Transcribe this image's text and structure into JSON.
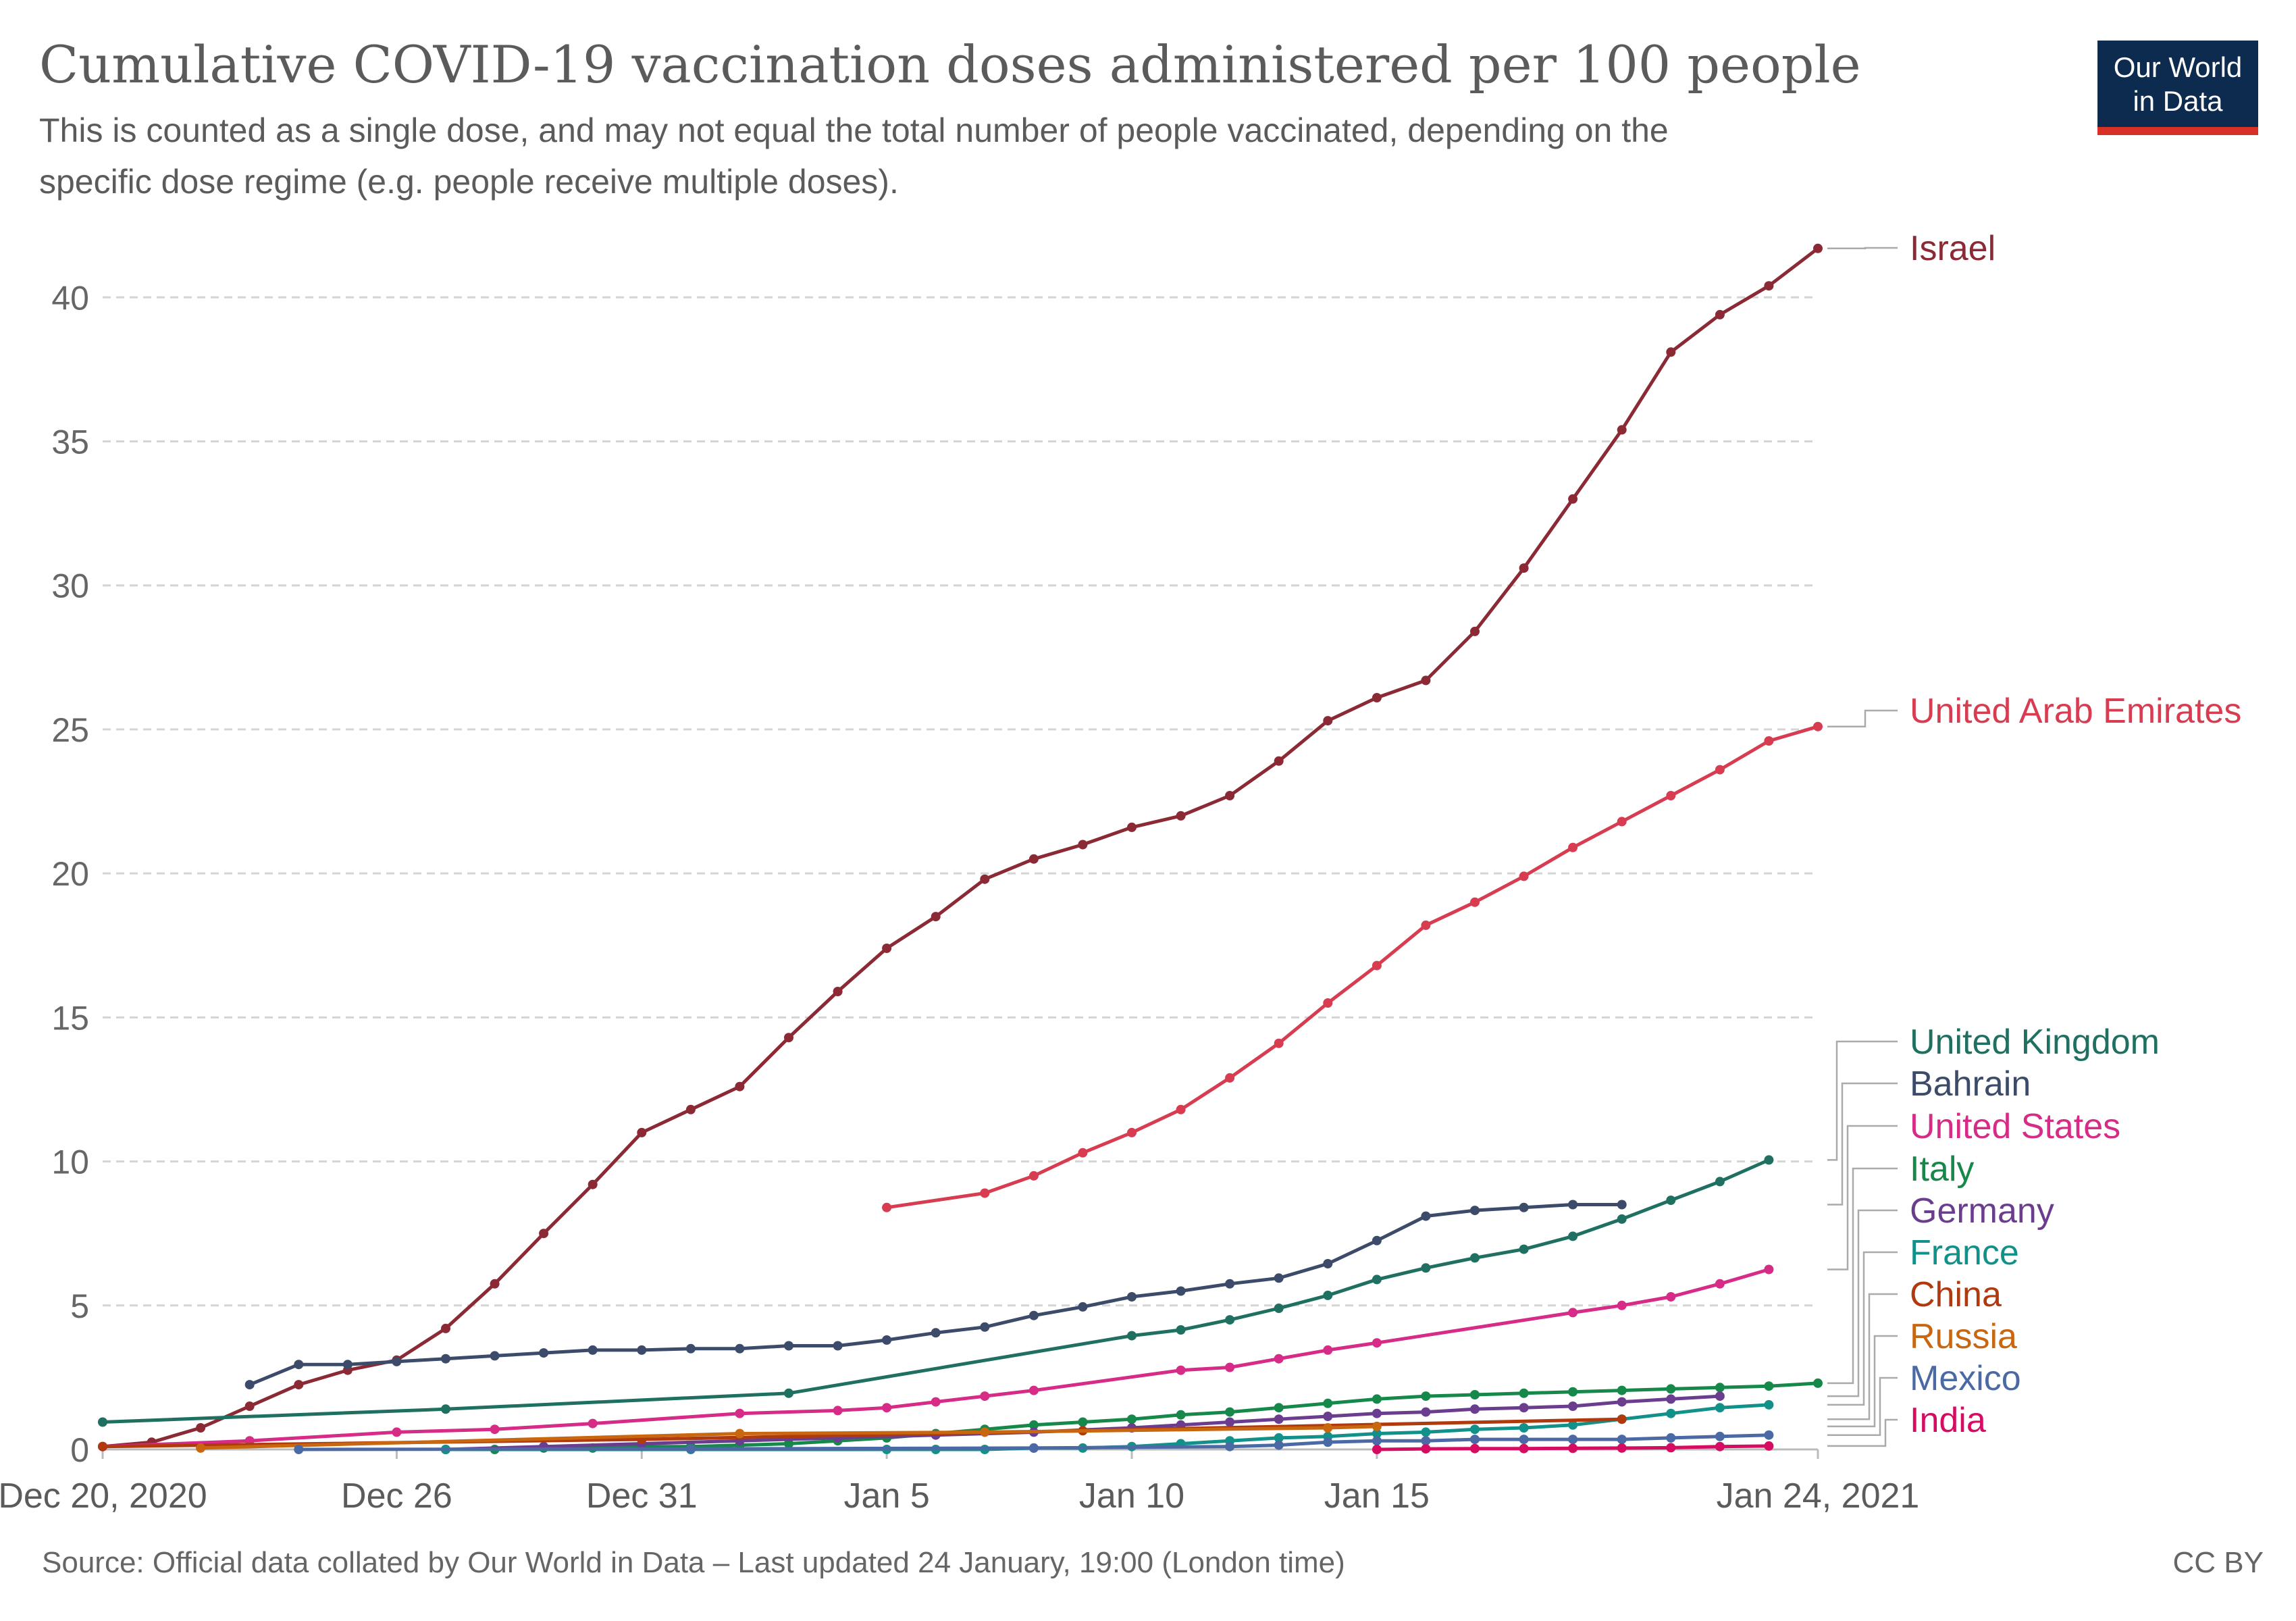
{
  "title": "Cumulative COVID-19 vaccination doses administered per 100 people",
  "subtitle_lines": [
    "This is counted as a single dose, and may not equal the total number of people vaccinated, depending on the",
    "specific dose regime (e.g. people receive multiple doses)."
  ],
  "logo": {
    "line1": "Our World",
    "line2": "in Data",
    "bg": "#0d2a4f",
    "accent": "#d73027"
  },
  "footer": {
    "source": "Source: Official data collated by Our World in Data – Last updated 24 January, 19:00 (London time)",
    "license": "CC BY"
  },
  "chart_data": {
    "type": "line",
    "title": "Cumulative COVID-19 vaccination doses administered per 100 people",
    "ylim": [
      0,
      42
    ],
    "yticks": [
      0,
      5,
      10,
      15,
      20,
      25,
      30,
      35,
      40
    ],
    "xlim": [
      "2020-12-20",
      "2021-01-24"
    ],
    "xticks": [
      {
        "date": "2020-12-20",
        "label": "Dec 20, 2020"
      },
      {
        "date": "2020-12-26",
        "label": "Dec 26"
      },
      {
        "date": "2020-12-31",
        "label": "Dec 31"
      },
      {
        "date": "2021-01-05",
        "label": "Jan 5"
      },
      {
        "date": "2021-01-10",
        "label": "Jan 10"
      },
      {
        "date": "2021-01-15",
        "label": "Jan 15"
      },
      {
        "date": "2021-01-24",
        "label": "Jan 24, 2021"
      }
    ],
    "grid": true,
    "legend_placement": "right",
    "series": [
      {
        "name": "Israel",
        "color": "#8b2a35",
        "points": [
          [
            "2020-12-20",
            0.1
          ],
          [
            "2020-12-21",
            0.25
          ],
          [
            "2020-12-22",
            0.75
          ],
          [
            "2020-12-23",
            1.5
          ],
          [
            "2020-12-24",
            2.25
          ],
          [
            "2020-12-25",
            2.75
          ],
          [
            "2020-12-26",
            3.1
          ],
          [
            "2020-12-27",
            4.2
          ],
          [
            "2020-12-28",
            5.75
          ],
          [
            "2020-12-29",
            7.5
          ],
          [
            "2020-12-30",
            9.2
          ],
          [
            "2020-12-31",
            11.0
          ],
          [
            "2021-01-01",
            11.8
          ],
          [
            "2021-01-02",
            12.6
          ],
          [
            "2021-01-03",
            14.3
          ],
          [
            "2021-01-04",
            15.9
          ],
          [
            "2021-01-05",
            17.4
          ],
          [
            "2021-01-06",
            18.5
          ],
          [
            "2021-01-07",
            19.8
          ],
          [
            "2021-01-08",
            20.5
          ],
          [
            "2021-01-09",
            21.0
          ],
          [
            "2021-01-10",
            21.6
          ],
          [
            "2021-01-11",
            22.0
          ],
          [
            "2021-01-12",
            22.7
          ],
          [
            "2021-01-13",
            23.9
          ],
          [
            "2021-01-14",
            25.3
          ],
          [
            "2021-01-15",
            26.1
          ],
          [
            "2021-01-16",
            26.7
          ],
          [
            "2021-01-17",
            28.4
          ],
          [
            "2021-01-18",
            30.6
          ],
          [
            "2021-01-19",
            33.0
          ],
          [
            "2021-01-20",
            35.4
          ],
          [
            "2021-01-21",
            38.1
          ],
          [
            "2021-01-22",
            39.4
          ],
          [
            "2021-01-23",
            40.4
          ],
          [
            "2021-01-24",
            41.7
          ]
        ]
      },
      {
        "name": "United Arab Emirates",
        "color": "#d73c50",
        "points": [
          [
            "2021-01-05",
            8.4
          ],
          [
            "2021-01-07",
            8.9
          ],
          [
            "2021-01-08",
            9.5
          ],
          [
            "2021-01-09",
            10.3
          ],
          [
            "2021-01-10",
            11.0
          ],
          [
            "2021-01-11",
            11.8
          ],
          [
            "2021-01-12",
            12.9
          ],
          [
            "2021-01-13",
            14.1
          ],
          [
            "2021-01-14",
            15.5
          ],
          [
            "2021-01-15",
            16.8
          ],
          [
            "2021-01-16",
            18.2
          ],
          [
            "2021-01-17",
            19.0
          ],
          [
            "2021-01-18",
            19.9
          ],
          [
            "2021-01-19",
            20.9
          ],
          [
            "2021-01-20",
            21.8
          ],
          [
            "2021-01-21",
            22.7
          ],
          [
            "2021-01-22",
            23.6
          ],
          [
            "2021-01-23",
            24.6
          ],
          [
            "2021-01-24",
            25.1
          ]
        ]
      },
      {
        "name": "United Kingdom",
        "color": "#1f7060",
        "points": [
          [
            "2020-12-20",
            0.95
          ],
          [
            "2020-12-27",
            1.4
          ],
          [
            "2021-01-03",
            1.95
          ],
          [
            "2021-01-10",
            3.95
          ],
          [
            "2021-01-11",
            4.15
          ],
          [
            "2021-01-12",
            4.5
          ],
          [
            "2021-01-13",
            4.9
          ],
          [
            "2021-01-14",
            5.35
          ],
          [
            "2021-01-15",
            5.9
          ],
          [
            "2021-01-16",
            6.3
          ],
          [
            "2021-01-17",
            6.65
          ],
          [
            "2021-01-18",
            6.95
          ],
          [
            "2021-01-19",
            7.4
          ],
          [
            "2021-01-20",
            8.0
          ],
          [
            "2021-01-21",
            8.65
          ],
          [
            "2021-01-22",
            9.3
          ],
          [
            "2021-01-23",
            10.05
          ]
        ]
      },
      {
        "name": "Bahrain",
        "color": "#3c4b69",
        "points": [
          [
            "2020-12-23",
            2.25
          ],
          [
            "2020-12-24",
            2.95
          ],
          [
            "2020-12-25",
            2.95
          ],
          [
            "2020-12-26",
            3.05
          ],
          [
            "2020-12-27",
            3.15
          ],
          [
            "2020-12-28",
            3.25
          ],
          [
            "2020-12-29",
            3.35
          ],
          [
            "2020-12-30",
            3.45
          ],
          [
            "2020-12-31",
            3.45
          ],
          [
            "2021-01-01",
            3.5
          ],
          [
            "2021-01-02",
            3.5
          ],
          [
            "2021-01-03",
            3.6
          ],
          [
            "2021-01-04",
            3.6
          ],
          [
            "2021-01-05",
            3.8
          ],
          [
            "2021-01-06",
            4.05
          ],
          [
            "2021-01-07",
            4.25
          ],
          [
            "2021-01-08",
            4.65
          ],
          [
            "2021-01-09",
            4.95
          ],
          [
            "2021-01-10",
            5.3
          ],
          [
            "2021-01-11",
            5.5
          ],
          [
            "2021-01-12",
            5.75
          ],
          [
            "2021-01-13",
            5.95
          ],
          [
            "2021-01-14",
            6.45
          ],
          [
            "2021-01-15",
            7.25
          ],
          [
            "2021-01-16",
            8.1
          ],
          [
            "2021-01-17",
            8.3
          ],
          [
            "2021-01-18",
            8.4
          ],
          [
            "2021-01-19",
            8.5
          ],
          [
            "2021-01-20",
            8.5
          ]
        ]
      },
      {
        "name": "United States",
        "color": "#d62b86",
        "points": [
          [
            "2020-12-20",
            0.1
          ],
          [
            "2020-12-23",
            0.3
          ],
          [
            "2020-12-26",
            0.6
          ],
          [
            "2020-12-28",
            0.7
          ],
          [
            "2020-12-30",
            0.9
          ],
          [
            "2021-01-02",
            1.25
          ],
          [
            "2021-01-04",
            1.35
          ],
          [
            "2021-01-05",
            1.45
          ],
          [
            "2021-01-06",
            1.65
          ],
          [
            "2021-01-07",
            1.85
          ],
          [
            "2021-01-08",
            2.05
          ],
          [
            "2021-01-11",
            2.75
          ],
          [
            "2021-01-12",
            2.85
          ],
          [
            "2021-01-13",
            3.15
          ],
          [
            "2021-01-14",
            3.45
          ],
          [
            "2021-01-15",
            3.7
          ],
          [
            "2021-01-19",
            4.75
          ],
          [
            "2021-01-20",
            5.0
          ],
          [
            "2021-01-21",
            5.3
          ],
          [
            "2021-01-22",
            5.75
          ],
          [
            "2021-01-23",
            6.25
          ]
        ]
      },
      {
        "name": "Italy",
        "color": "#16884a",
        "points": [
          [
            "2020-12-27",
            0.0
          ],
          [
            "2020-12-28",
            0.0
          ],
          [
            "2020-12-29",
            0.05
          ],
          [
            "2020-12-30",
            0.05
          ],
          [
            "2020-12-31",
            0.1
          ],
          [
            "2021-01-01",
            0.1
          ],
          [
            "2021-01-02",
            0.15
          ],
          [
            "2021-01-03",
            0.2
          ],
          [
            "2021-01-04",
            0.3
          ],
          [
            "2021-01-05",
            0.4
          ],
          [
            "2021-01-06",
            0.55
          ],
          [
            "2021-01-07",
            0.7
          ],
          [
            "2021-01-08",
            0.85
          ],
          [
            "2021-01-09",
            0.95
          ],
          [
            "2021-01-10",
            1.05
          ],
          [
            "2021-01-11",
            1.2
          ],
          [
            "2021-01-12",
            1.3
          ],
          [
            "2021-01-13",
            1.45
          ],
          [
            "2021-01-14",
            1.6
          ],
          [
            "2021-01-15",
            1.75
          ],
          [
            "2021-01-16",
            1.85
          ],
          [
            "2021-01-17",
            1.9
          ],
          [
            "2021-01-18",
            1.95
          ],
          [
            "2021-01-19",
            2.0
          ],
          [
            "2021-01-20",
            2.05
          ],
          [
            "2021-01-21",
            2.1
          ],
          [
            "2021-01-22",
            2.15
          ],
          [
            "2021-01-23",
            2.2
          ],
          [
            "2021-01-24",
            2.3
          ]
        ]
      },
      {
        "name": "Germany",
        "color": "#6b3d8f",
        "points": [
          [
            "2020-12-27",
            0.0
          ],
          [
            "2020-12-29",
            0.1
          ],
          [
            "2020-12-31",
            0.2
          ],
          [
            "2021-01-02",
            0.3
          ],
          [
            "2021-01-04",
            0.4
          ],
          [
            "2021-01-06",
            0.5
          ],
          [
            "2021-01-08",
            0.6
          ],
          [
            "2021-01-10",
            0.75
          ],
          [
            "2021-01-11",
            0.85
          ],
          [
            "2021-01-12",
            0.95
          ],
          [
            "2021-01-13",
            1.05
          ],
          [
            "2021-01-14",
            1.15
          ],
          [
            "2021-01-15",
            1.25
          ],
          [
            "2021-01-16",
            1.3
          ],
          [
            "2021-01-17",
            1.4
          ],
          [
            "2021-01-18",
            1.45
          ],
          [
            "2021-01-19",
            1.5
          ],
          [
            "2021-01-20",
            1.65
          ],
          [
            "2021-01-21",
            1.75
          ],
          [
            "2021-01-22",
            1.85
          ]
        ]
      },
      {
        "name": "France",
        "color": "#12908a",
        "points": [
          [
            "2020-12-27",
            0.0
          ],
          [
            "2021-01-01",
            0.0
          ],
          [
            "2021-01-05",
            0.0
          ],
          [
            "2021-01-06",
            0.0
          ],
          [
            "2021-01-07",
            0.0
          ],
          [
            "2021-01-08",
            0.05
          ],
          [
            "2021-01-09",
            0.05
          ],
          [
            "2021-01-10",
            0.1
          ],
          [
            "2021-01-11",
            0.2
          ],
          [
            "2021-01-12",
            0.3
          ],
          [
            "2021-01-13",
            0.4
          ],
          [
            "2021-01-14",
            0.45
          ],
          [
            "2021-01-15",
            0.55
          ],
          [
            "2021-01-16",
            0.6
          ],
          [
            "2021-01-17",
            0.7
          ],
          [
            "2021-01-18",
            0.75
          ],
          [
            "2021-01-19",
            0.85
          ],
          [
            "2021-01-20",
            1.05
          ],
          [
            "2021-01-21",
            1.25
          ],
          [
            "2021-01-22",
            1.45
          ],
          [
            "2021-01-23",
            1.55
          ]
        ]
      },
      {
        "name": "China",
        "color": "#b03a0e",
        "points": [
          [
            "2020-12-20",
            0.1
          ],
          [
            "2020-12-31",
            0.35
          ],
          [
            "2021-01-09",
            0.65
          ],
          [
            "2021-01-20",
            1.05
          ]
        ]
      },
      {
        "name": "Russia",
        "color": "#c8670f",
        "points": [
          [
            "2020-12-22",
            0.05
          ],
          [
            "2021-01-02",
            0.55
          ],
          [
            "2021-01-07",
            0.6
          ],
          [
            "2021-01-14",
            0.75
          ],
          [
            "2021-01-15",
            0.8
          ]
        ]
      },
      {
        "name": "Mexico",
        "color": "#4b6aa5",
        "points": [
          [
            "2020-12-24",
            0.0
          ],
          [
            "2021-01-01",
            0.02
          ],
          [
            "2021-01-08",
            0.05
          ],
          [
            "2021-01-12",
            0.1
          ],
          [
            "2021-01-13",
            0.15
          ],
          [
            "2021-01-14",
            0.25
          ],
          [
            "2021-01-15",
            0.3
          ],
          [
            "2021-01-16",
            0.3
          ],
          [
            "2021-01-17",
            0.35
          ],
          [
            "2021-01-18",
            0.35
          ],
          [
            "2021-01-19",
            0.35
          ],
          [
            "2021-01-20",
            0.35
          ],
          [
            "2021-01-21",
            0.4
          ],
          [
            "2021-01-22",
            0.45
          ],
          [
            "2021-01-23",
            0.5
          ]
        ]
      },
      {
        "name": "India",
        "color": "#d60b62",
        "points": [
          [
            "2021-01-15",
            0.0
          ],
          [
            "2021-01-16",
            0.02
          ],
          [
            "2021-01-17",
            0.03
          ],
          [
            "2021-01-18",
            0.03
          ],
          [
            "2021-01-19",
            0.04
          ],
          [
            "2021-01-20",
            0.05
          ],
          [
            "2021-01-21",
            0.06
          ],
          [
            "2021-01-22",
            0.1
          ],
          [
            "2021-01-23",
            0.12
          ]
        ]
      }
    ]
  }
}
